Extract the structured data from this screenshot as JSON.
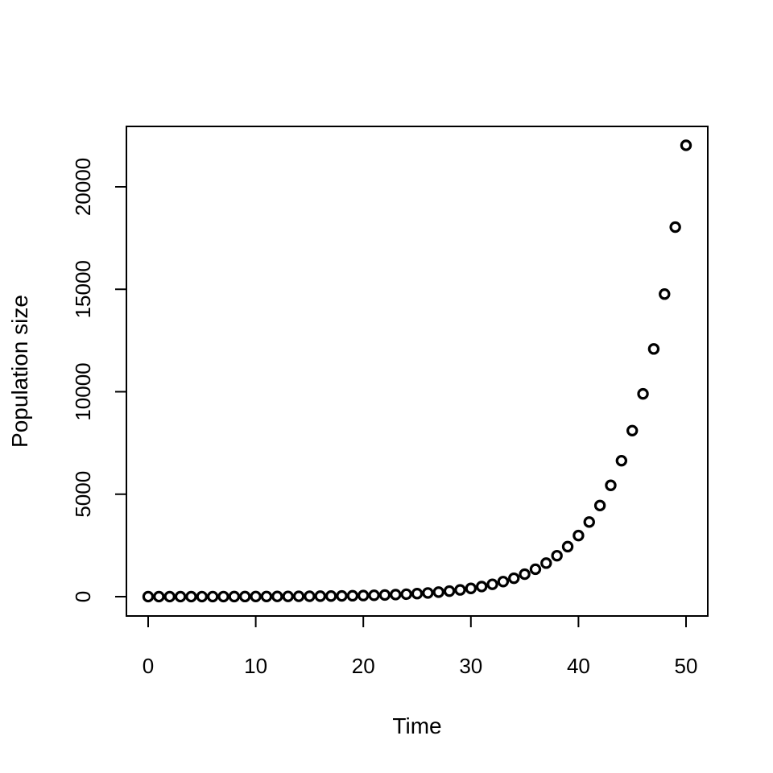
{
  "chart_data": {
    "type": "scatter",
    "title": "",
    "xlabel": "Time",
    "ylabel": "Population size",
    "xlim": [
      0,
      50
    ],
    "ylim": [
      0,
      22000
    ],
    "x_ticks": [
      0,
      10,
      20,
      30,
      40,
      50
    ],
    "y_ticks": [
      0,
      5000,
      10000,
      15000,
      20000
    ],
    "grid": false,
    "series": [
      {
        "x": [
          0,
          1,
          2,
          3,
          4,
          5,
          6,
          7,
          8,
          9,
          10,
          11,
          12,
          13,
          14,
          15,
          16,
          17,
          18,
          19,
          20,
          21,
          22,
          23,
          24,
          25,
          26,
          27,
          28,
          29,
          30,
          31,
          32,
          33,
          34,
          35,
          36,
          37,
          38,
          39,
          40,
          41,
          42,
          43,
          44,
          45,
          46,
          47,
          48,
          49,
          50
        ],
        "y": [
          1,
          1.22,
          1.49,
          1.82,
          2.23,
          2.72,
          3.32,
          4.06,
          4.95,
          6.05,
          7.39,
          9.03,
          11.0,
          13.5,
          16.4,
          20.1,
          24.5,
          30.0,
          36.6,
          44.7,
          54.6,
          66.7,
          81.5,
          99.5,
          121,
          148,
          181,
          221,
          270,
          330,
          403,
          493,
          602,
          735,
          898,
          1097,
          1339,
          1636,
          1998,
          2441,
          2981,
          3641,
          4447,
          5432,
          6634,
          8103,
          9897,
          12088,
          14765,
          18034,
          22026
        ]
      }
    ]
  }
}
